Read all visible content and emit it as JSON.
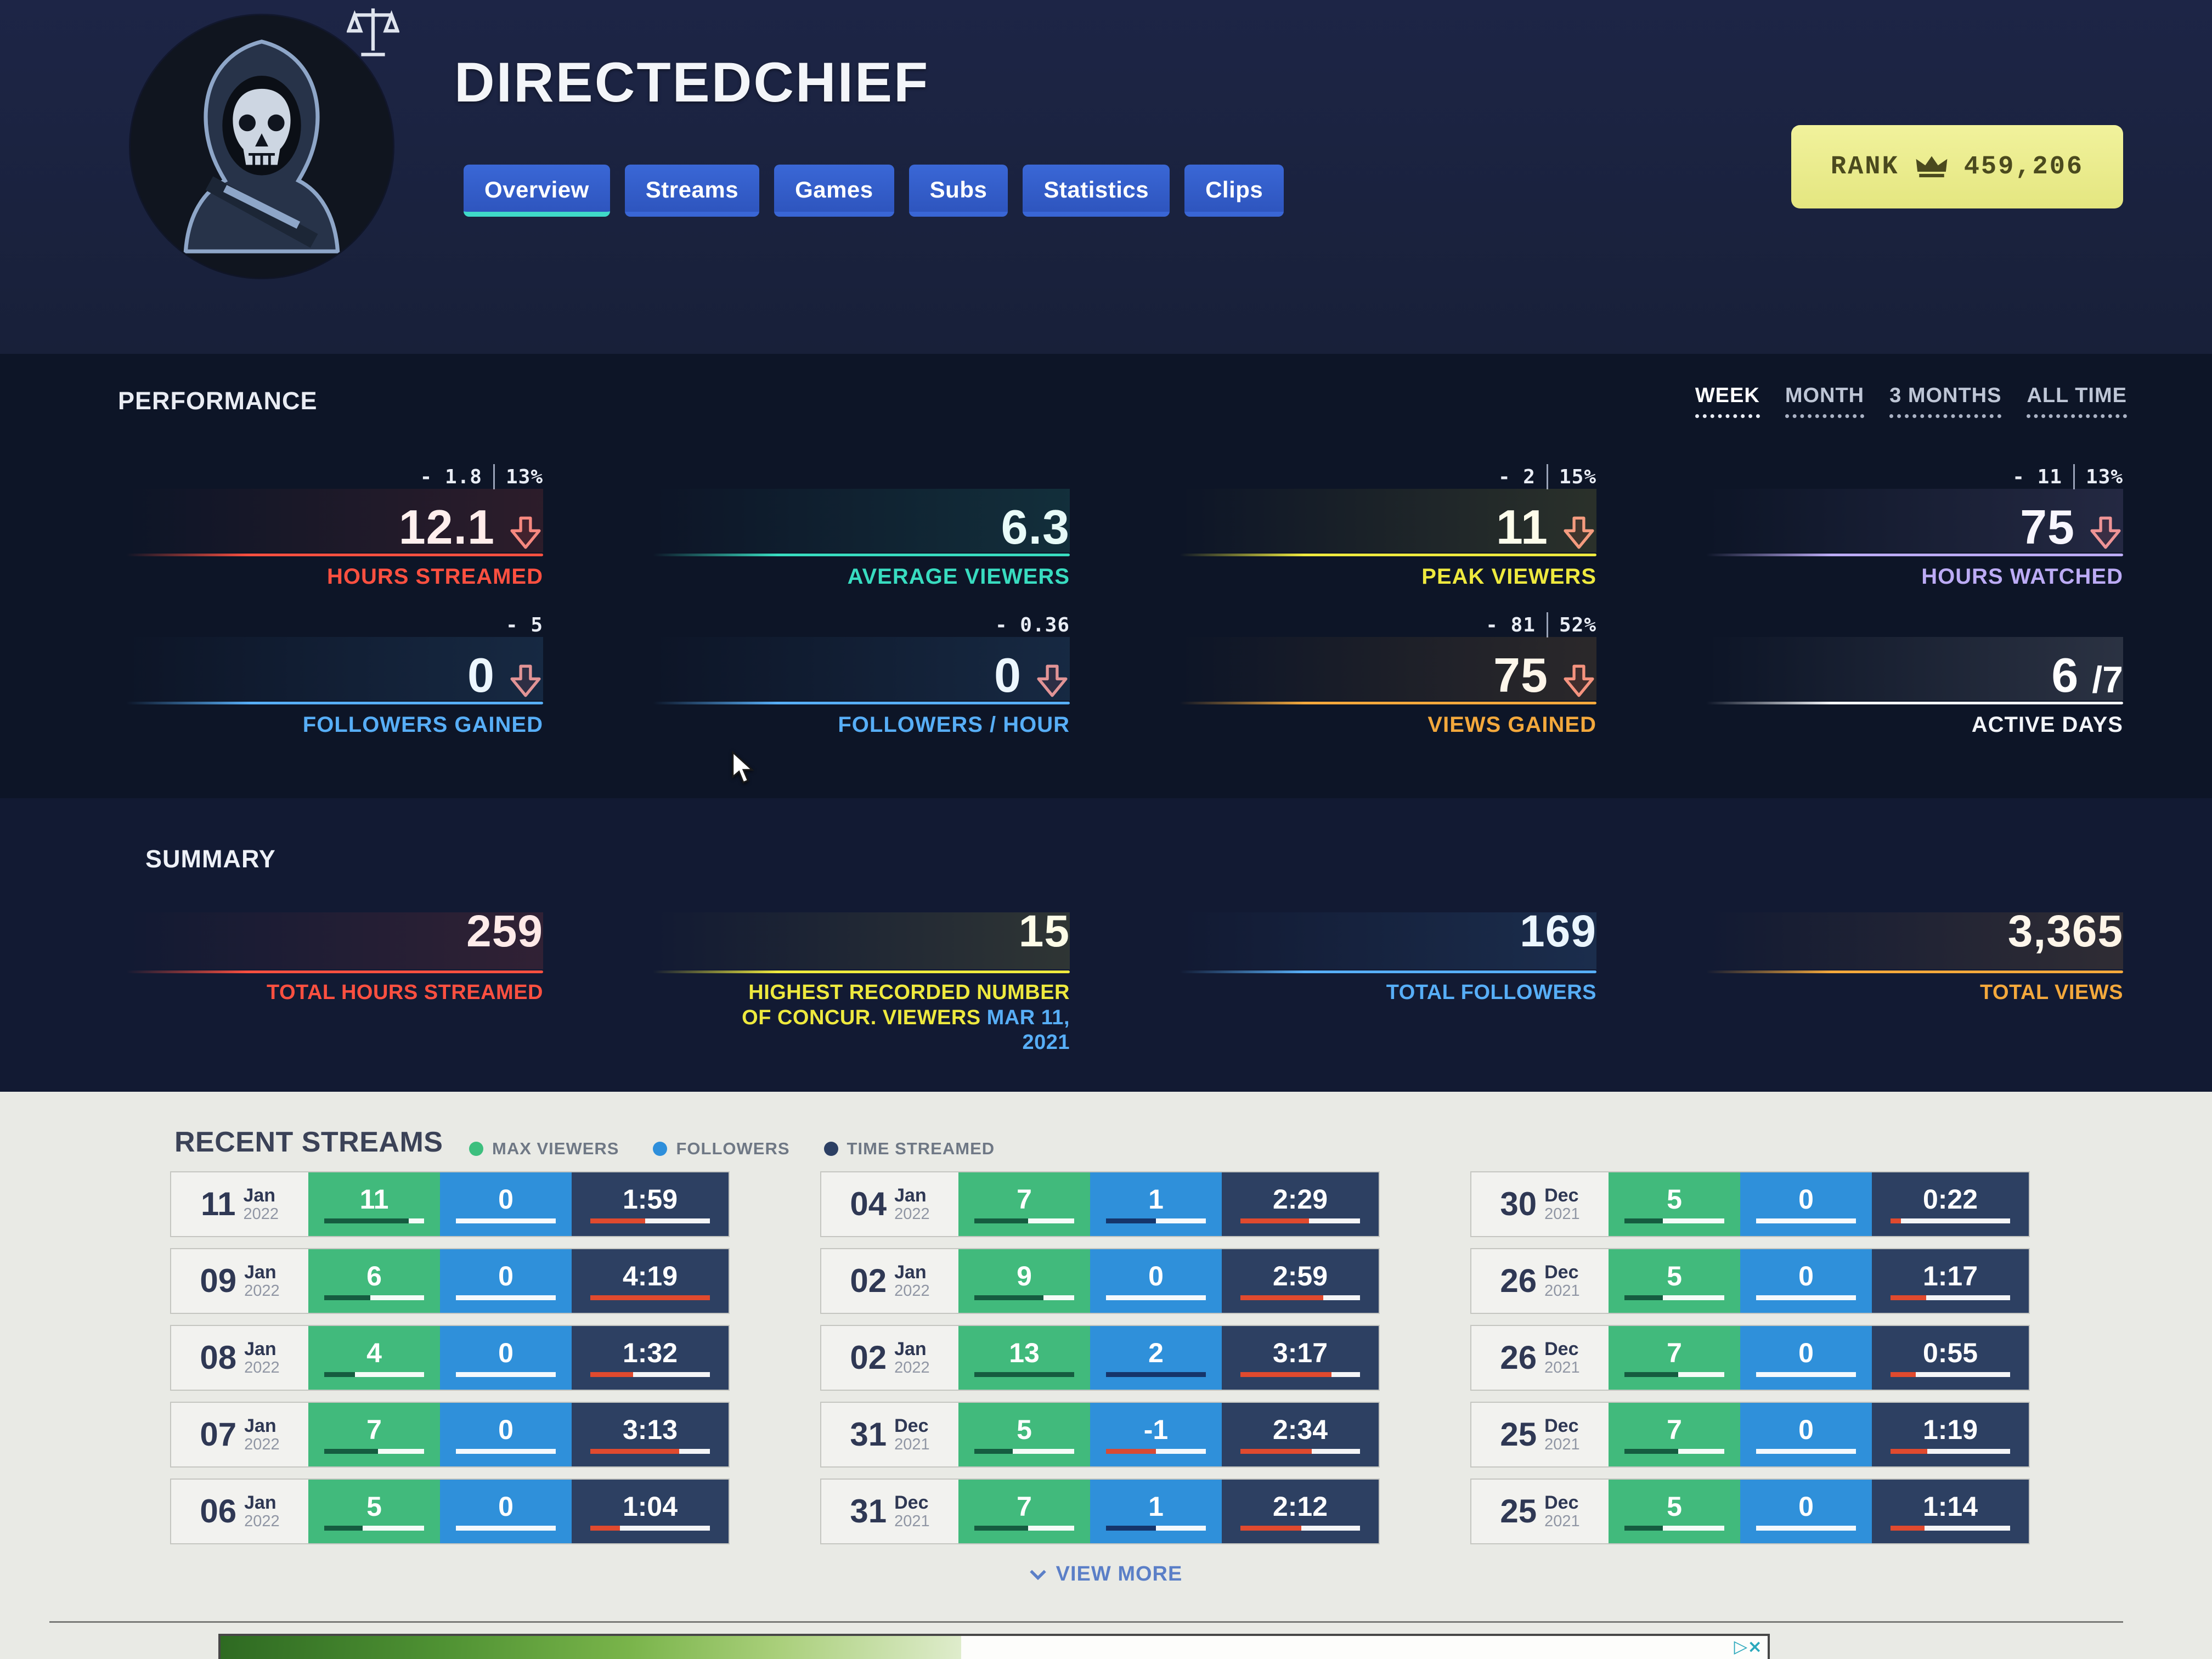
{
  "header": {
    "title": "DIRECTEDCHIEF",
    "tabs": [
      {
        "label": "Overview",
        "active": true
      },
      {
        "label": "Streams",
        "active": false
      },
      {
        "label": "Games",
        "active": false
      },
      {
        "label": "Subs",
        "active": false
      },
      {
        "label": "Statistics",
        "active": false
      },
      {
        "label": "Clips",
        "active": false
      }
    ],
    "rank_badge": {
      "label": "RANK",
      "icon": "crown",
      "value": "459,206",
      "bg_color": "#eaeb8a",
      "text_color": "#4b4a1e"
    }
  },
  "performance": {
    "heading": "PERFORMANCE",
    "period_tabs": [
      {
        "label": "WEEK",
        "active": true
      },
      {
        "label": "MONTH",
        "active": false
      },
      {
        "label": "3 MONTHS",
        "active": false
      },
      {
        "label": "ALL TIME",
        "active": false
      }
    ],
    "metrics": [
      {
        "label": "HOURS STREAMED",
        "value": "12.1",
        "change": "- 1.8",
        "change_pct": "13%",
        "trend": "down",
        "color": "#ff5040"
      },
      {
        "label": "AVERAGE VIEWERS",
        "value": "6.3",
        "color": "#38dcc0"
      },
      {
        "label": "PEAK VIEWERS",
        "value": "11",
        "change": "- 2",
        "change_pct": "15%",
        "trend": "down",
        "color": "#eee93e"
      },
      {
        "label": "HOURS WATCHED",
        "value": "75",
        "change": "- 11",
        "change_pct": "13%",
        "trend": "down",
        "color": "#bcabf5"
      },
      {
        "label": "FOLLOWERS GAINED",
        "value": "0",
        "change": "- 5",
        "trend": "down",
        "color": "#57aef7"
      },
      {
        "label": "FOLLOWERS / HOUR",
        "value": "0",
        "change": "- 0.36",
        "trend": "down",
        "color": "#57aef7"
      },
      {
        "label": "VIEWS GAINED",
        "value": "75",
        "change": "- 81",
        "change_pct": "52%",
        "trend": "down",
        "color": "#f3a83c"
      },
      {
        "label": "ACTIVE DAYS",
        "value": "6",
        "value_suffix": "/7",
        "color": "#f2f4f8"
      }
    ]
  },
  "summary": {
    "heading": "SUMMARY",
    "metrics": [
      {
        "label": "TOTAL HOURS STREAMED",
        "value": "259",
        "color": "#ff5040"
      },
      {
        "label": "HIGHEST RECORDED NUMBER OF CONCUR. VIEWERS",
        "value": "15",
        "date": "MAR 11, 2021",
        "color": "#eee93e",
        "date_color": "#57aef7"
      },
      {
        "label": "TOTAL FOLLOWERS",
        "value": "169",
        "color": "#57aef7"
      },
      {
        "label": "TOTAL VIEWS",
        "value": "3,365",
        "color": "#f3a83c"
      }
    ]
  },
  "recent_streams": {
    "heading": "RECENT STREAMS",
    "legend": [
      {
        "label": "MAX VIEWERS",
        "color": "#3dbf7e"
      },
      {
        "label": "FOLLOWERS",
        "color": "#2e8fdb"
      },
      {
        "label": "TIME STREAMED",
        "color": "#2c3f63"
      }
    ],
    "columns": [
      [
        {
          "day": "11",
          "month": "Jan",
          "year": "2022",
          "max_viewers": 11,
          "followers": 0,
          "time_streamed": "1:59"
        },
        {
          "day": "09",
          "month": "Jan",
          "year": "2022",
          "max_viewers": 6,
          "followers": 0,
          "time_streamed": "4:19"
        },
        {
          "day": "08",
          "month": "Jan",
          "year": "2022",
          "max_viewers": 4,
          "followers": 0,
          "time_streamed": "1:32"
        },
        {
          "day": "07",
          "month": "Jan",
          "year": "2022",
          "max_viewers": 7,
          "followers": 0,
          "time_streamed": "3:13"
        },
        {
          "day": "06",
          "month": "Jan",
          "year": "2022",
          "max_viewers": 5,
          "followers": 0,
          "time_streamed": "1:04"
        }
      ],
      [
        {
          "day": "04",
          "month": "Jan",
          "year": "2022",
          "max_viewers": 7,
          "followers": 1,
          "time_streamed": "2:29"
        },
        {
          "day": "02",
          "month": "Jan",
          "year": "2022",
          "max_viewers": 9,
          "followers": 0,
          "time_streamed": "2:59"
        },
        {
          "day": "02",
          "month": "Jan",
          "year": "2022",
          "max_viewers": 13,
          "followers": 2,
          "time_streamed": "3:17"
        },
        {
          "day": "31",
          "month": "Dec",
          "year": "2021",
          "max_viewers": 5,
          "followers": -1,
          "time_streamed": "2:34"
        },
        {
          "day": "31",
          "month": "Dec",
          "year": "2021",
          "max_viewers": 7,
          "followers": 1,
          "time_streamed": "2:12"
        }
      ],
      [
        {
          "day": "30",
          "month": "Dec",
          "year": "2021",
          "max_viewers": 5,
          "followers": 0,
          "time_streamed": "0:22"
        },
        {
          "day": "26",
          "month": "Dec",
          "year": "2021",
          "max_viewers": 5,
          "followers": 0,
          "time_streamed": "1:17"
        },
        {
          "day": "26",
          "month": "Dec",
          "year": "2021",
          "max_viewers": 7,
          "followers": 0,
          "time_streamed": "0:55"
        },
        {
          "day": "25",
          "month": "Dec",
          "year": "2021",
          "max_viewers": 7,
          "followers": 0,
          "time_streamed": "1:19"
        },
        {
          "day": "25",
          "month": "Dec",
          "year": "2021",
          "max_viewers": 5,
          "followers": 0,
          "time_streamed": "1:14"
        }
      ]
    ],
    "view_more": "VIEW MORE"
  },
  "ad_banner": {
    "adchoices_glyph": "▷×"
  }
}
